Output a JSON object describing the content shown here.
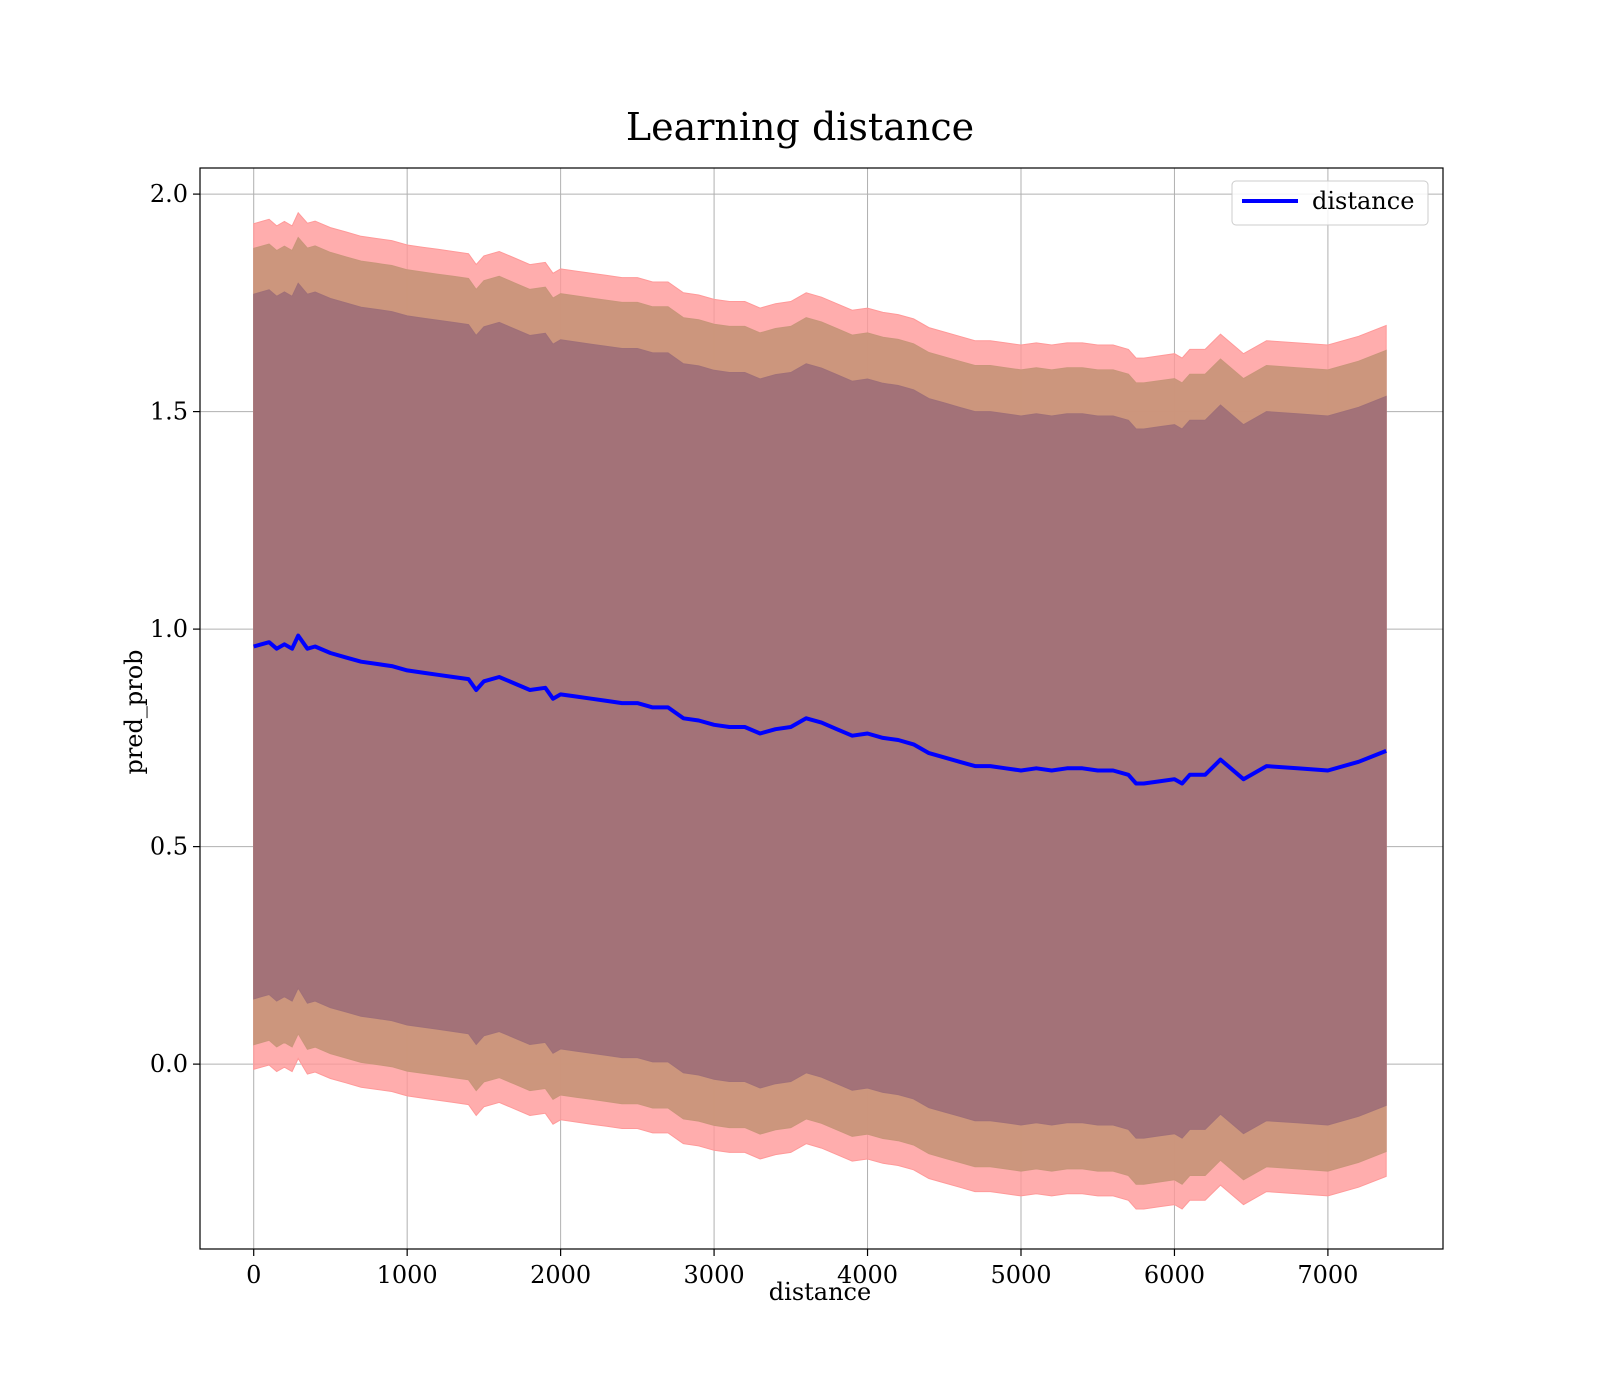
{
  "chart_data": {
    "type": "line",
    "title": "Learning distance",
    "xlabel": "distance",
    "ylabel": "pred_prob",
    "xlim": [
      -350,
      7750
    ],
    "ylim": [
      -0.425,
      2.06
    ],
    "xticks": [
      0,
      1000,
      2000,
      3000,
      4000,
      5000,
      6000,
      7000
    ],
    "yticks": [
      0.0,
      0.5,
      1.0,
      1.5,
      2.0
    ],
    "xtick_labels": [
      "0",
      "1000",
      "2000",
      "3000",
      "4000",
      "5000",
      "6000",
      "7000"
    ],
    "ytick_labels": [
      "0.0",
      "0.5",
      "1.0",
      "1.5",
      "2.0"
    ],
    "grid": true,
    "legend_position": "top-right",
    "colors": {
      "line": "#0000ff",
      "band_outer": "#ff9999",
      "band_middle": "#c9957a",
      "band_inner": "#a07078",
      "grid": "#b0b0b0"
    },
    "series": [
      {
        "name": "distance",
        "x": [
          0,
          50,
          100,
          150,
          200,
          250,
          290,
          350,
          400,
          500,
          600,
          700,
          800,
          900,
          1000,
          1100,
          1200,
          1300,
          1400,
          1450,
          1500,
          1600,
          1700,
          1800,
          1900,
          1950,
          2000,
          2100,
          2200,
          2300,
          2400,
          2500,
          2600,
          2700,
          2800,
          2900,
          3000,
          3100,
          3200,
          3300,
          3400,
          3500,
          3600,
          3700,
          3800,
          3900,
          4000,
          4100,
          4200,
          4300,
          4400,
          4500,
          4600,
          4700,
          4800,
          4900,
          5000,
          5100,
          5200,
          5300,
          5400,
          5500,
          5600,
          5700,
          5750,
          5800,
          5900,
          6000,
          6050,
          6100,
          6200,
          6300,
          6450,
          6600,
          6800,
          7000,
          7200,
          7380
        ],
        "y": [
          0.96,
          0.965,
          0.97,
          0.955,
          0.965,
          0.955,
          0.985,
          0.955,
          0.96,
          0.945,
          0.935,
          0.925,
          0.92,
          0.915,
          0.905,
          0.9,
          0.895,
          0.89,
          0.885,
          0.86,
          0.88,
          0.89,
          0.875,
          0.86,
          0.865,
          0.84,
          0.85,
          0.845,
          0.84,
          0.835,
          0.83,
          0.83,
          0.82,
          0.82,
          0.795,
          0.79,
          0.78,
          0.775,
          0.775,
          0.76,
          0.77,
          0.775,
          0.795,
          0.785,
          0.77,
          0.755,
          0.76,
          0.75,
          0.745,
          0.735,
          0.715,
          0.705,
          0.695,
          0.685,
          0.685,
          0.68,
          0.675,
          0.68,
          0.675,
          0.68,
          0.68,
          0.675,
          0.675,
          0.665,
          0.645,
          0.645,
          0.65,
          0.655,
          0.645,
          0.665,
          0.665,
          0.7,
          0.655,
          0.685,
          0.68,
          0.675,
          0.695,
          0.72
        ],
        "std": [
          0.81,
          0.81,
          0.81,
          0.81,
          0.81,
          0.81,
          0.81,
          0.815,
          0.815,
          0.815,
          0.815,
          0.815,
          0.815,
          0.815,
          0.815,
          0.815,
          0.815,
          0.815,
          0.815,
          0.815,
          0.815,
          0.815,
          0.815,
          0.815,
          0.815,
          0.815,
          0.815,
          0.815,
          0.815,
          0.815,
          0.815,
          0.815,
          0.815,
          0.815,
          0.815,
          0.815,
          0.815,
          0.815,
          0.815,
          0.815,
          0.815,
          0.815,
          0.815,
          0.815,
          0.815,
          0.815,
          0.815,
          0.815,
          0.815,
          0.815,
          0.815,
          0.815,
          0.815,
          0.815,
          0.815,
          0.815,
          0.815,
          0.815,
          0.815,
          0.815,
          0.815,
          0.815,
          0.815,
          0.815,
          0.815,
          0.815,
          0.815,
          0.815,
          0.815,
          0.815,
          0.815,
          0.815,
          0.815,
          0.815,
          0.815,
          0.815,
          0.815,
          0.815
        ]
      }
    ],
    "bands": [
      {
        "half_width_in_std": 1.2,
        "color": "#ff9999"
      },
      {
        "half_width_in_std": 1.13,
        "color": "#c9957a"
      },
      {
        "half_width_in_std": 1.0,
        "color": "#a07078"
      }
    ]
  }
}
